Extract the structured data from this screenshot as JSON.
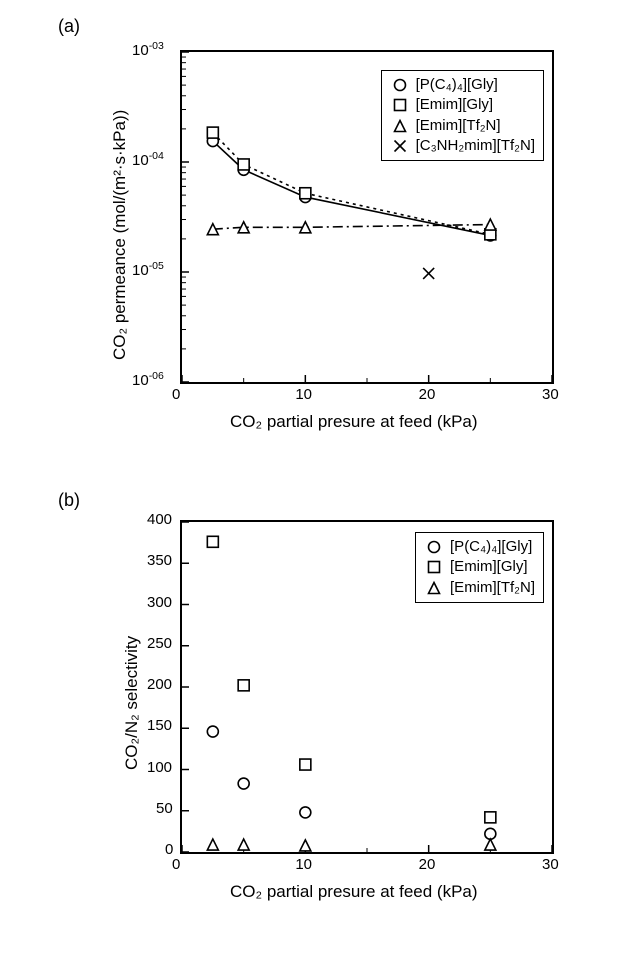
{
  "labels": {
    "a": "(a)",
    "b": "(b)",
    "xlabel": "CO₂ partial presure at feed (kPa)",
    "ylabel_a": "CO₂ permeance (mol/(m²·s·kPa))",
    "ylabel_b": "CO₂/N₂ selectivity"
  },
  "chart_a": {
    "type": "scatter-line-logy",
    "xlim": [
      0,
      30
    ],
    "xticks": [
      0,
      10,
      20,
      30
    ],
    "xminor": 5,
    "ylim_exp": [
      -6,
      -3
    ],
    "ytick_exp": [
      -6,
      -5,
      -4,
      -3
    ],
    "background": "#ffffff",
    "axis_color": "#000000",
    "legend_items": [
      "[P(C₄)₄][Gly]",
      "[Emim][Gly]",
      "[Emim][Tf₂N]",
      "[C₃NH₂mim][Tf₂N]"
    ],
    "legend_markers": [
      "circle",
      "square",
      "triangle",
      "x"
    ],
    "series": [
      {
        "name": "[P(C4)4][Gly]",
        "marker": "circle",
        "line": "solid",
        "color": "#000000",
        "x": [
          2.5,
          5,
          10,
          25
        ],
        "y": [
          0.000155,
          8.5e-05,
          4.8e-05,
          2.15e-05
        ]
      },
      {
        "name": "[Emim][Gly]",
        "marker": "square",
        "line": "dot",
        "color": "#000000",
        "x": [
          2.5,
          5,
          10,
          25
        ],
        "y": [
          0.000185,
          9.5e-05,
          5.2e-05,
          2.2e-05
        ]
      },
      {
        "name": "[Emim][Tf2N]",
        "marker": "triangle",
        "line": "dashdot",
        "color": "#000000",
        "x": [
          2.5,
          5,
          10,
          25
        ],
        "y": [
          2.45e-05,
          2.55e-05,
          2.55e-05,
          2.7e-05
        ]
      },
      {
        "name": "[C3NH2mim][Tf2N]",
        "marker": "x",
        "line": "none",
        "color": "#000000",
        "x": [
          20
        ],
        "y": [
          9.7e-06
        ]
      }
    ]
  },
  "chart_b": {
    "type": "scatter",
    "xlim": [
      0,
      30
    ],
    "xticks": [
      0,
      10,
      20,
      30
    ],
    "xminor": 5,
    "ylim": [
      0,
      400
    ],
    "yticks": [
      0,
      50,
      100,
      150,
      200,
      250,
      300,
      350,
      400
    ],
    "background": "#ffffff",
    "axis_color": "#000000",
    "legend_items": [
      "[P(C₄)₄][Gly]",
      "[Emim][Gly]",
      "[Emim][Tf₂N]"
    ],
    "legend_markers": [
      "circle",
      "square",
      "triangle"
    ],
    "series": [
      {
        "name": "[P(C4)4][Gly]",
        "marker": "circle",
        "color": "#000000",
        "x": [
          2.5,
          5,
          10,
          25
        ],
        "y": [
          146,
          83,
          48,
          22
        ]
      },
      {
        "name": "[Emim][Gly]",
        "marker": "square",
        "color": "#000000",
        "x": [
          2.5,
          5,
          10,
          25
        ],
        "y": [
          376,
          202,
          106,
          42
        ]
      },
      {
        "name": "[Emim][Tf2N]",
        "marker": "triangle",
        "color": "#000000",
        "x": [
          2.5,
          5,
          10,
          25
        ],
        "y": [
          9,
          9,
          8,
          9
        ]
      }
    ]
  },
  "style": {
    "marker_size": 11,
    "marker_stroke": 1.6,
    "line_width": 1.6,
    "tick_len_major": 7,
    "tick_len_minor": 4,
    "font_size_label": 17,
    "font_size_tick": 15,
    "font_size_legend": 15
  }
}
